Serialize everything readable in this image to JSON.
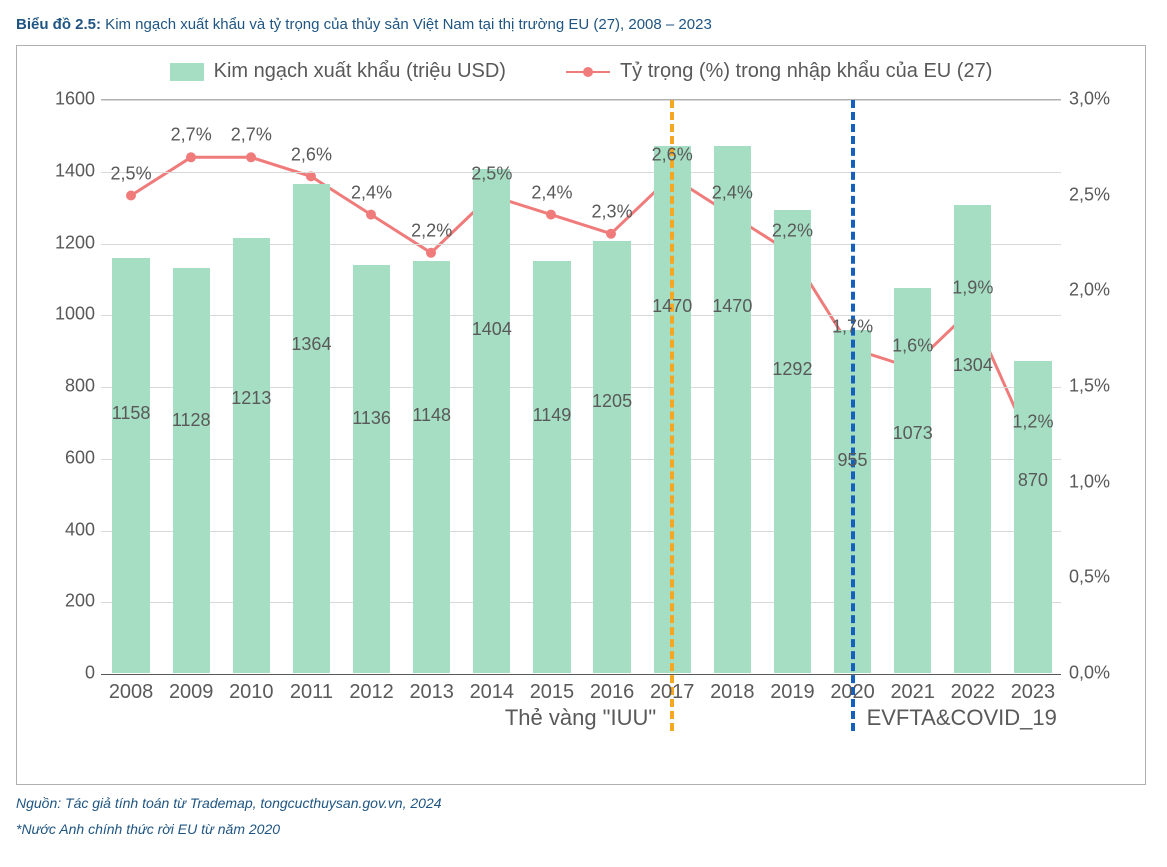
{
  "title_prefix": "Biểu đồ 2.5:",
  "title_rest": " Kim ngạch xuất khẩu và tỷ trọng của thủy sản Việt Nam tại thị trường EU (27), 2008 – 2023",
  "legend": {
    "bar_label": "Kim ngạch xuất khẩu (triệu USD)",
    "line_label": "Tỷ trọng (%) trong nhập khẩu của EU (27)"
  },
  "colors": {
    "bar": "#a6dec4",
    "line": "#f07b7b",
    "marker": "#f07b7b",
    "grid": "#d9d9d9",
    "axis_text": "#595959",
    "title_text": "#1f5582",
    "vline_iuu": "#f5a623",
    "vline_evfta": "#1560bd",
    "frame": "#b0b0b0",
    "background": "#ffffff"
  },
  "chart": {
    "type": "bar+line",
    "categories": [
      "2008",
      "2009",
      "2010",
      "2011",
      "2012",
      "2013",
      "2014",
      "2015",
      "2016",
      "2017",
      "2018",
      "2019",
      "2020",
      "2021",
      "2022",
      "2023"
    ],
    "bar_values": [
      1158,
      1128,
      1213,
      1364,
      1136,
      1148,
      1404,
      1149,
      1205,
      1470,
      1470,
      1292,
      955,
      1073,
      1304,
      870
    ],
    "pct_values": [
      2.5,
      2.7,
      2.7,
      2.6,
      2.4,
      2.2,
      2.5,
      2.4,
      2.3,
      2.6,
      2.4,
      2.2,
      1.7,
      1.6,
      1.9,
      1.2
    ],
    "pct_labels": [
      "2,5%",
      "2,7%",
      "2,7%",
      "2,6%",
      "2,4%",
      "2,2%",
      "2,5%",
      "2,4%",
      "2,3%",
      "2,6%",
      "2,4%",
      "2,2%",
      "1,7%",
      "1,6%",
      "1,9%",
      "1,2%"
    ],
    "y_left": {
      "min": 0,
      "max": 1600,
      "step": 200
    },
    "y_right": {
      "min": 0.0,
      "max": 3.0,
      "step": 0.5,
      "tick_labels": [
        "0,0%",
        "0,5%",
        "1,0%",
        "1,5%",
        "2,0%",
        "2,5%",
        "3,0%"
      ]
    },
    "bar_width_ratio": 0.62,
    "line_width": 3,
    "marker_radius": 5,
    "font_size_axis": 18,
    "font_size_legend": 20,
    "annotations": [
      {
        "type": "vline",
        "at_category": "2017",
        "color_key": "vline_iuu",
        "label": "Thẻ vàng \"IUU\"",
        "label_side": "left"
      },
      {
        "type": "vline",
        "at_category": "2020",
        "color_key": "vline_evfta",
        "label": "EVFTA&COVID_19",
        "label_side": "right"
      }
    ]
  },
  "source_line1": "Nguồn: Tác giả tính toán từ Trademap, tongcucthuysan.gov.vn, 2024",
  "source_line2": "*Nước Anh chính thức rời EU từ năm 2020"
}
